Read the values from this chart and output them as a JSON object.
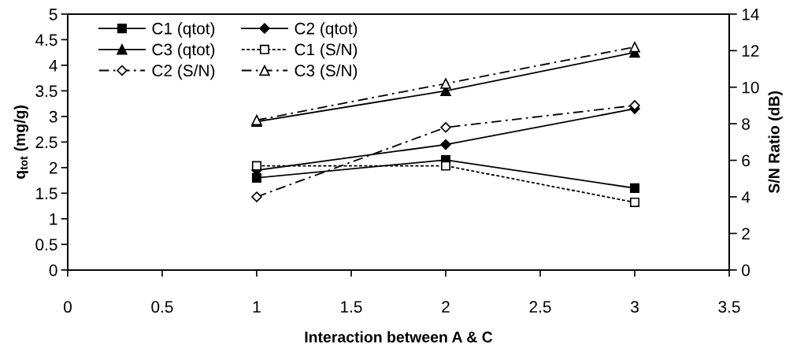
{
  "chart_data": {
    "type": "line",
    "xlabel": "Interaction between A & C",
    "ylabel": "q$_{tot}$ (mg/g)",
    "y2label": "S/N Ratio (dB)",
    "x": [
      1,
      2,
      3
    ],
    "xlim": [
      0,
      3.5
    ],
    "xticks": [
      0,
      0.5,
      1,
      1.5,
      2,
      2.5,
      3,
      3.5
    ],
    "ylim": [
      0,
      5
    ],
    "yticks": [
      0,
      0.5,
      1,
      1.5,
      2,
      2.5,
      3,
      3.5,
      4,
      4.5,
      5
    ],
    "y2lim": [
      0,
      14
    ],
    "y2ticks": [
      0,
      2,
      4,
      6,
      8,
      10,
      12,
      14
    ],
    "grid": false,
    "legend": "top left",
    "series": [
      {
        "name": "C1 (qtot)",
        "color": "#000000",
        "values": [
          1.8,
          2.15,
          1.6
        ],
        "marker": "square",
        "line_style": "solid"
      },
      {
        "name": "C2 (qtot)",
        "color": "#000000",
        "values": [
          1.95,
          2.45,
          3.15
        ],
        "marker": "diamond",
        "line_style": "solid"
      },
      {
        "name": "C3 (qtot)",
        "color": "#000000",
        "values": [
          2.9,
          3.5,
          4.25
        ],
        "marker": "triangle",
        "line_style": "solid"
      },
      {
        "name": "C1 (S/N)",
        "color": "#000000",
        "axis": "y2",
        "values": [
          5.7,
          5.7,
          3.7
        ],
        "marker": "square",
        "line_style": "dotted"
      },
      {
        "name": "C2 (S/N)",
        "color": "#000000",
        "axis": "y2",
        "values": [
          4.0,
          7.8,
          9.0
        ],
        "marker": "diamond",
        "line_style": "dashed"
      },
      {
        "name": "C3 (S/N)",
        "color": "#000000",
        "axis": "y2",
        "values": [
          8.2,
          10.2,
          12.2
        ],
        "marker": "triangle",
        "line_style": "dashed"
      }
    ]
  }
}
